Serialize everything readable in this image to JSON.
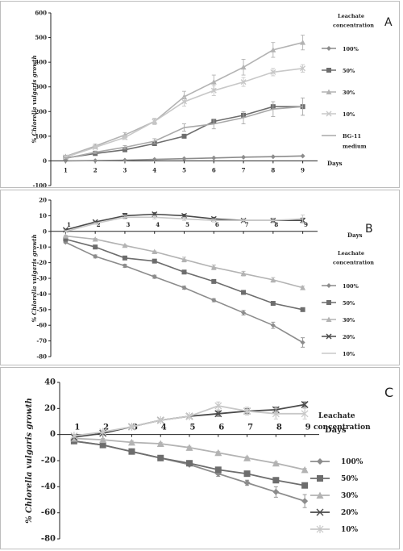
{
  "colors": {
    "100%": "#8c8c8c",
    "50%": "#6d6d6d",
    "30%": "#b3b3b3",
    "20%": "#4a4a4a",
    "10%": "#c8c8c8",
    "BG-11 medium": "#a9a9a9",
    "axis": "#222222"
  },
  "chart_data": [
    {
      "panel_letter": "A",
      "type": "line",
      "xlabel": "Days",
      "ylabel": "% Chlorella vulgaris growth",
      "x": [
        1,
        2,
        3,
        4,
        5,
        6,
        7,
        8,
        9
      ],
      "xlim": [
        0.5,
        9.5
      ],
      "ylim": [
        -100,
        600
      ],
      "yticks": [
        -100,
        0,
        100,
        200,
        300,
        400,
        500,
        600
      ],
      "legend_title": [
        "Leachate",
        "concentration"
      ],
      "legend_position": "right",
      "grid": false,
      "series": [
        {
          "name": "100%",
          "marker": "diamond",
          "values": [
            0,
            1,
            3,
            6,
            9,
            12,
            15,
            17,
            20
          ]
        },
        {
          "name": "50%",
          "marker": "square",
          "values": [
            12,
            30,
            45,
            70,
            100,
            160,
            185,
            220,
            220
          ]
        },
        {
          "name": "30%",
          "marker": "triangle",
          "values": [
            18,
            60,
            105,
            160,
            260,
            320,
            380,
            450,
            480
          ],
          "err": [
            5,
            8,
            10,
            12,
            22,
            28,
            32,
            30,
            30
          ]
        },
        {
          "name": "10%",
          "marker": "cross",
          "values": [
            15,
            55,
            95,
            160,
            240,
            285,
            320,
            360,
            375
          ],
          "err": [
            4,
            6,
            8,
            10,
            18,
            20,
            18,
            15,
            15
          ]
        },
        {
          "name": "BG-11 medium",
          "marker": "none",
          "values": [
            10,
            35,
            55,
            80,
            135,
            150,
            175,
            210,
            220
          ],
          "err": [
            3,
            5,
            7,
            10,
            15,
            20,
            25,
            30,
            35
          ]
        }
      ]
    },
    {
      "panel_letter": "B",
      "type": "line",
      "xlabel": "Days",
      "ylabel": "% Chlorella vulgaris growth",
      "x": [
        1,
        2,
        3,
        4,
        5,
        6,
        7,
        8,
        9
      ],
      "xlim": [
        0.5,
        9.5
      ],
      "ylim": [
        -80,
        20
      ],
      "yticks": [
        -80,
        -70,
        -60,
        -50,
        -40,
        -30,
        -20,
        -10,
        0,
        10,
        20
      ],
      "legend_title": [
        "Leachate",
        "concentration"
      ],
      "legend_position": "right",
      "grid": false,
      "series": [
        {
          "name": "100%",
          "marker": "diamond",
          "values": [
            -7,
            -16,
            -22,
            -29,
            -36,
            -44,
            -52,
            -60,
            -71
          ],
          "err": [
            0.5,
            1,
            1,
            1,
            1,
            1,
            1.5,
            2,
            3
          ]
        },
        {
          "name": "50%",
          "marker": "square",
          "values": [
            -5,
            -10,
            -17,
            -19,
            -26,
            -32,
            -39,
            -46,
            -50
          ],
          "err": [
            0.5,
            0.5,
            0.5,
            0.5,
            0.5,
            0.5,
            0.5,
            0.5,
            1
          ]
        },
        {
          "name": "30%",
          "marker": "triangle",
          "values": [
            -3,
            -5,
            -9,
            -13,
            -18,
            -23,
            -27,
            -31,
            -36
          ],
          "err": [
            0.5,
            0.5,
            0.5,
            0.5,
            1.5,
            1.5,
            1.5,
            1.5,
            1
          ]
        },
        {
          "name": "20%",
          "marker": "cross",
          "values": [
            1,
            6,
            10,
            11,
            10,
            8,
            7,
            7,
            7
          ],
          "err": [
            0.5,
            0.5,
            1.5,
            1,
            1,
            1,
            1,
            1,
            1.5
          ]
        },
        {
          "name": "10%",
          "marker": "none",
          "values": [
            0,
            5,
            9,
            9,
            8,
            7,
            7,
            7,
            8
          ],
          "err": [
            0.5,
            0.5,
            1,
            1,
            1,
            1,
            1,
            1.5,
            2.5
          ]
        }
      ]
    },
    {
      "panel_letter": "C",
      "type": "line",
      "xlabel": "Days",
      "ylabel": "% Chlorella vulgaris growth",
      "x": [
        1,
        2,
        3,
        4,
        5,
        6,
        7,
        8,
        9
      ],
      "xlim": [
        0.5,
        9.5
      ],
      "ylim": [
        -80,
        40
      ],
      "yticks": [
        -80,
        -60,
        -40,
        -20,
        0,
        20,
        40
      ],
      "legend_title": [
        "Leachate",
        "concentration"
      ],
      "legend_position": "right",
      "grid": false,
      "series": [
        {
          "name": "100%",
          "marker": "diamond",
          "values": [
            -5,
            -8,
            -13,
            -18,
            -23,
            -30,
            -37,
            -44,
            -51
          ],
          "err": [
            1,
            1,
            1,
            1,
            1,
            2,
            2,
            4,
            5
          ]
        },
        {
          "name": "50%",
          "marker": "square",
          "values": [
            -5,
            -8,
            -13,
            -18,
            -22,
            -27,
            -30,
            -35,
            -39
          ],
          "err": [
            1,
            1,
            1,
            1,
            1,
            1,
            1,
            1,
            1
          ]
        },
        {
          "name": "30%",
          "marker": "triangle",
          "values": [
            -3,
            -4,
            -6,
            -7,
            -10,
            -14,
            -18,
            -22,
            -27
          ],
          "err": [
            1,
            1,
            1,
            1,
            1,
            1,
            1,
            1,
            1
          ]
        },
        {
          "name": "20%",
          "marker": "cross",
          "values": [
            -2,
            1,
            6,
            11,
            14,
            16,
            18,
            19,
            23
          ],
          "err": [
            1,
            1,
            1,
            1,
            1,
            2,
            2,
            2,
            2
          ]
        },
        {
          "name": "10%",
          "marker": "star",
          "values": [
            -1,
            2,
            6,
            11,
            14,
            22,
            18,
            16,
            16
          ],
          "err": [
            1,
            1,
            1,
            1,
            1,
            3,
            3,
            4,
            4
          ]
        }
      ]
    }
  ]
}
